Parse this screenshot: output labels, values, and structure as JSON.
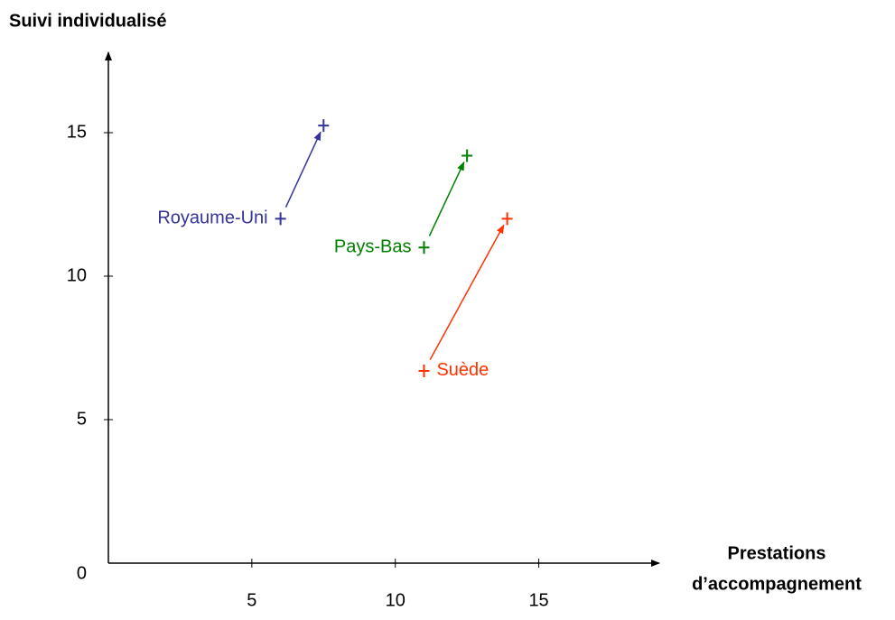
{
  "chart_data": {
    "type": "arrow-scatter",
    "ylabel": "Suivi individualisé",
    "xlabel": [
      "Prestations",
      "d’accompagnement"
    ],
    "xlim": [
      0,
      19.2
    ],
    "ylim": [
      0,
      17.8
    ],
    "xticks": [
      5,
      10,
      15
    ],
    "yticks": [
      0,
      5,
      10,
      15
    ],
    "series": [
      {
        "name": "Royaume-Uni",
        "color": "#333399",
        "x": [
          6,
          7.5
        ],
        "values": [
          12,
          15.25
        ]
      },
      {
        "name": "Pays-Bas",
        "color": "#008000",
        "x": [
          11,
          12.5
        ],
        "values": [
          11,
          14.2
        ]
      },
      {
        "name": "Suède",
        "color": "#ff3300",
        "x": [
          11,
          13.9
        ],
        "values": [
          6.7,
          12
        ]
      }
    ]
  }
}
